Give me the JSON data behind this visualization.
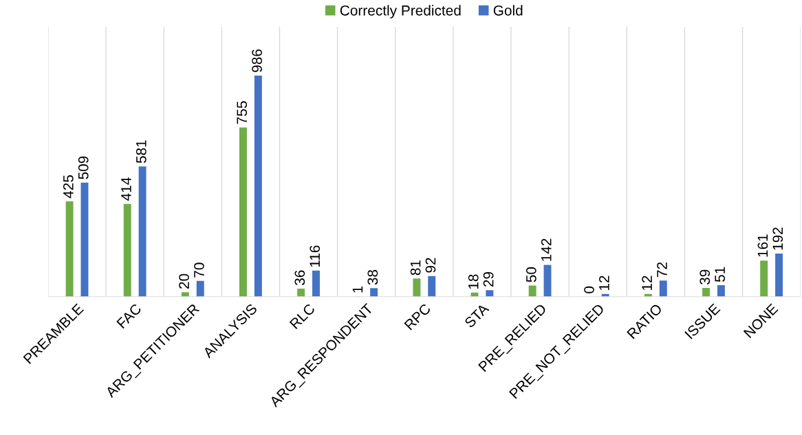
{
  "chart_data": {
    "type": "bar",
    "categories": [
      "PREAMBLE",
      "FAC",
      "ARG_PETITIONER",
      "ANALYSIS",
      "RLC",
      "ARG_RESPONDENT",
      "RPC",
      "STA",
      "PRE_RELIED",
      "PRE_NOT_RELIED",
      "RATIO",
      "ISSUE",
      "NONE"
    ],
    "series": [
      {
        "name": "Correctly Predicted",
        "color": "#70ad47",
        "values": [
          425,
          414,
          20,
          755,
          36,
          1,
          81,
          18,
          50,
          0,
          12,
          39,
          161
        ]
      },
      {
        "name": "Gold",
        "color": "#4472c4",
        "values": [
          509,
          581,
          70,
          986,
          116,
          38,
          92,
          29,
          142,
          12,
          72,
          51,
          192
        ]
      }
    ],
    "data_labels": true,
    "legend": "top",
    "grid": "x",
    "tick_labels": "x"
  }
}
